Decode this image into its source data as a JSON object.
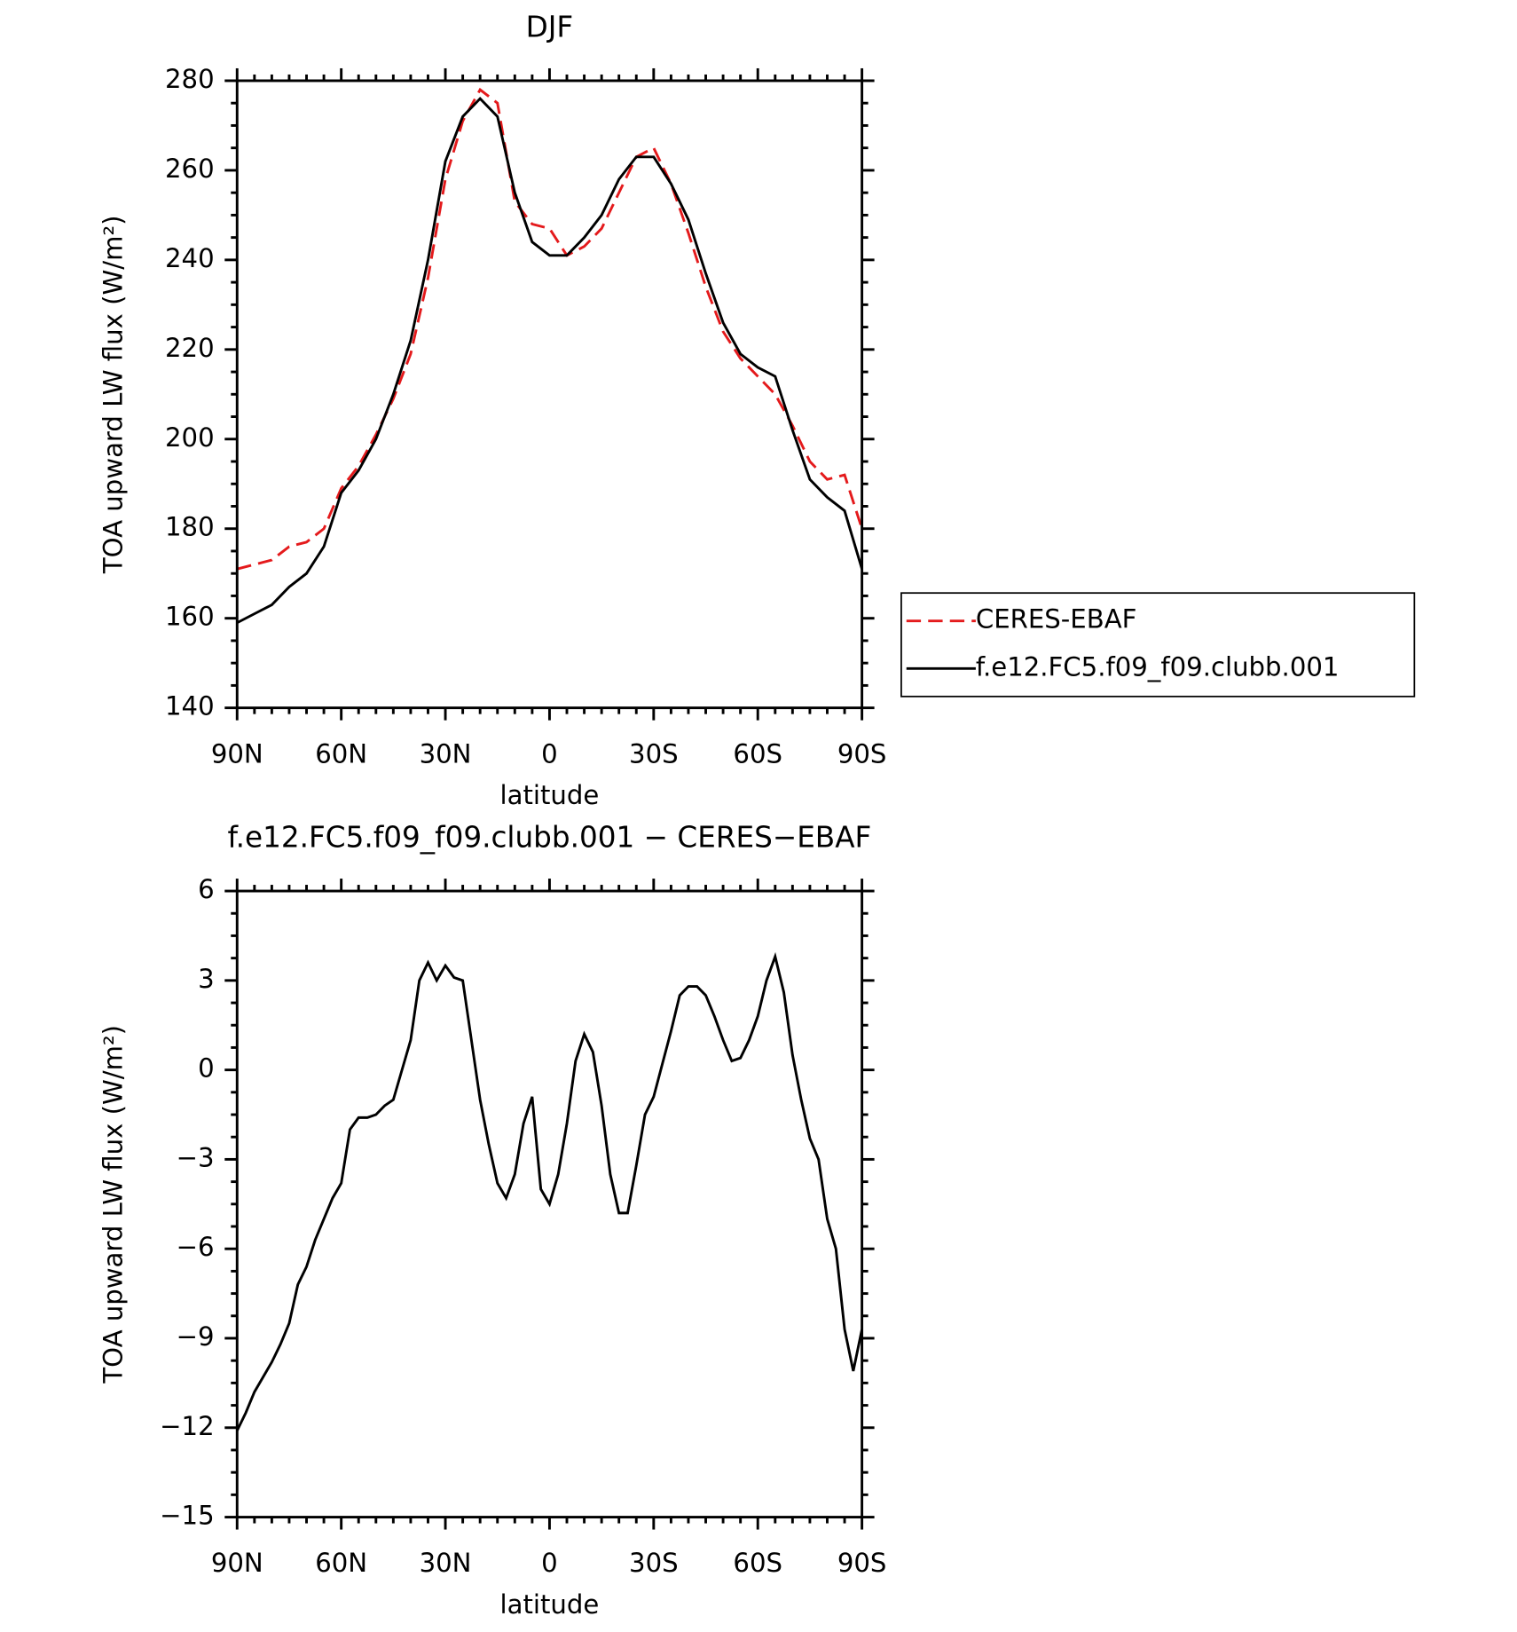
{
  "chart_data": [
    {
      "type": "line",
      "title": "DJF",
      "xlabel": "latitude",
      "ylabel": "TOA upward LW flux (W/m²)",
      "x": [
        90,
        85,
        80,
        75,
        70,
        65,
        60,
        55,
        50,
        45,
        40,
        35,
        30,
        25,
        20,
        15,
        10,
        5,
        0,
        -5,
        -10,
        -15,
        -20,
        -25,
        -30,
        -35,
        -40,
        -45,
        -50,
        -55,
        -60,
        -65,
        -70,
        -75,
        -80,
        -85,
        -90
      ],
      "series": [
        {
          "name": "CERES-EBAF",
          "color": "#e41a1c",
          "dashed": true,
          "values": [
            171,
            172,
            173,
            176,
            177,
            180,
            189,
            194,
            201,
            209,
            219,
            236,
            258,
            271,
            278,
            275,
            253,
            248,
            247,
            241,
            243,
            247,
            255,
            263,
            265,
            257,
            246,
            234,
            224,
            218,
            214,
            210,
            203,
            195,
            191,
            192,
            180
          ]
        },
        {
          "name": "f.e12.FC5.f09_f09.clubb.001",
          "color": "#000000",
          "dashed": false,
          "values": [
            159,
            161,
            163,
            167,
            170,
            176,
            188,
            193,
            200,
            210,
            222,
            240,
            262,
            272,
            276,
            272,
            255,
            244,
            241,
            241,
            245,
            250,
            258,
            263,
            263,
            257,
            249,
            237,
            226,
            219,
            216,
            214,
            202,
            191,
            187,
            184,
            171
          ]
        }
      ],
      "xlim": [
        90,
        -90
      ],
      "xticks": [
        {
          "value": 90,
          "label": "90N"
        },
        {
          "value": 60,
          "label": "60N"
        },
        {
          "value": 30,
          "label": "30N"
        },
        0,
        {
          "value": -30,
          "label": "30S"
        },
        {
          "value": -60,
          "label": "60S"
        },
        {
          "value": -90,
          "label": "90S"
        }
      ],
      "ylim": [
        140,
        280
      ],
      "yticks": [
        140,
        160,
        180,
        200,
        220,
        240,
        260,
        280
      ],
      "legend": "right"
    },
    {
      "type": "line",
      "title": "f.e12.FC5.f09_f09.clubb.001 − CERES−EBAF",
      "xlabel": "latitude",
      "ylabel": "TOA upward LW flux (W/m²)",
      "x": [
        90,
        87.5,
        85,
        82.5,
        80,
        77.5,
        75,
        72.5,
        70,
        67.5,
        65,
        62.5,
        60,
        57.5,
        55,
        52.5,
        50,
        47.5,
        45,
        42.5,
        40,
        37.5,
        35,
        32.5,
        30,
        27.5,
        25,
        22.5,
        20,
        17.5,
        15,
        12.5,
        10,
        7.5,
        5,
        2.5,
        0,
        -2.5,
        -5,
        -7.5,
        -10,
        -12.5,
        -15,
        -17.5,
        -20,
        -22.5,
        -25,
        -27.5,
        -30,
        -32.5,
        -35,
        -37.5,
        -40,
        -42.5,
        -45,
        -47.5,
        -50,
        -52.5,
        -55,
        -57.5,
        -60,
        -62.5,
        -65,
        -67.5,
        -70,
        -72.5,
        -75,
        -77.5,
        -80,
        -82.5,
        -85,
        -87.5,
        -90
      ],
      "series": [
        {
          "color": "#000000",
          "dashed": false,
          "values": [
            -12.1,
            -11.5,
            -10.8,
            -10.3,
            -9.8,
            -9.2,
            -8.5,
            -7.2,
            -6.6,
            -5.7,
            -5.0,
            -4.3,
            -3.8,
            -2.0,
            -1.6,
            -1.6,
            -1.5,
            -1.2,
            -1.0,
            0.0,
            1.0,
            3.0,
            3.6,
            3.0,
            3.5,
            3.1,
            3.0,
            1.0,
            -1.0,
            -2.5,
            -3.8,
            -4.3,
            -3.5,
            -1.8,
            -0.9,
            -4.0,
            -4.5,
            -3.5,
            -1.8,
            0.3,
            1.2,
            0.6,
            -1.2,
            -3.5,
            -4.8,
            -4.8,
            -3.2,
            -1.5,
            -0.9,
            0.2,
            1.3,
            2.5,
            2.8,
            2.8,
            2.5,
            1.8,
            1.0,
            0.3,
            0.4,
            1.0,
            1.8,
            3.0,
            3.8,
            2.6,
            0.5,
            -1.0,
            -2.3,
            -3.0,
            -5.0,
            -6.0,
            -8.7,
            -10.1,
            -8.7
          ]
        }
      ],
      "xlim": [
        90,
        -90
      ],
      "xticks": [
        {
          "value": 90,
          "label": "90N"
        },
        {
          "value": 60,
          "label": "60N"
        },
        {
          "value": 30,
          "label": "30N"
        },
        0,
        {
          "value": -30,
          "label": "30S"
        },
        {
          "value": -60,
          "label": "60S"
        },
        {
          "value": -90,
          "label": "90S"
        }
      ],
      "ylim": [
        -15,
        6
      ],
      "yticks": [
        {
          "value": -15,
          "label": "−15"
        },
        {
          "value": -12,
          "label": "−12"
        },
        {
          "value": -9,
          "label": "−9"
        },
        {
          "value": -6,
          "label": "−6"
        },
        {
          "value": -3,
          "label": "−3"
        },
        0,
        3,
        6
      ]
    }
  ]
}
